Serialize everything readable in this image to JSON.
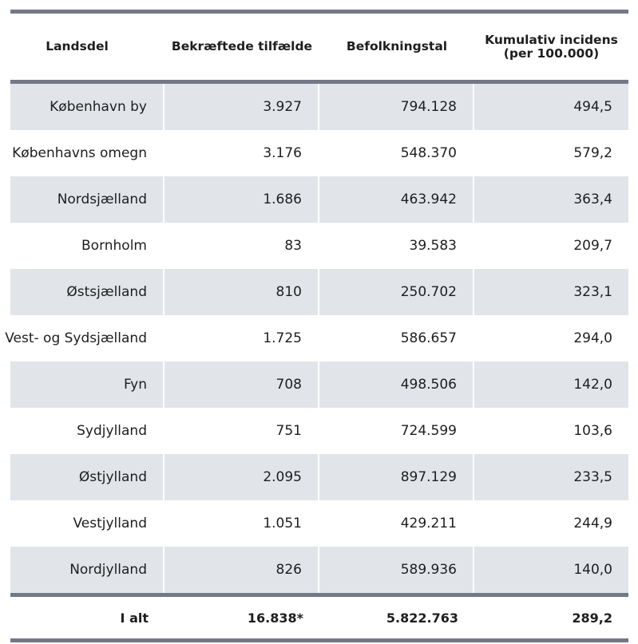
{
  "table": {
    "headers": [
      "Landsdel",
      "Bekræftede tilfælde",
      "Befolkningstal",
      "Kumulativ incidens (per 100.000)"
    ],
    "rows": [
      [
        "København by",
        "3.927",
        "794.128",
        "494,5"
      ],
      [
        "Københavns omegn",
        "3.176",
        "548.370",
        "579,2"
      ],
      [
        "Nordsjælland",
        "1.686",
        "463.942",
        "363,4"
      ],
      [
        "Bornholm",
        "83",
        "39.583",
        "209,7"
      ],
      [
        "Østsjælland",
        "810",
        "250.702",
        "323,1"
      ],
      [
        "Vest- og Sydsjælland",
        "1.725",
        "586.657",
        "294,0"
      ],
      [
        "Fyn",
        "708",
        "498.506",
        "142,0"
      ],
      [
        "Sydjylland",
        "751",
        "724.599",
        "103,6"
      ],
      [
        "Østjylland",
        "2.095",
        "897.129",
        "233,5"
      ],
      [
        "Vestjylland",
        "1.051",
        "429.211",
        "244,9"
      ],
      [
        "Nordjylland",
        "826",
        "589.936",
        "140,0"
      ]
    ],
    "total": [
      "I alt",
      "16.838*",
      "5.822.763",
      "289,2"
    ]
  }
}
